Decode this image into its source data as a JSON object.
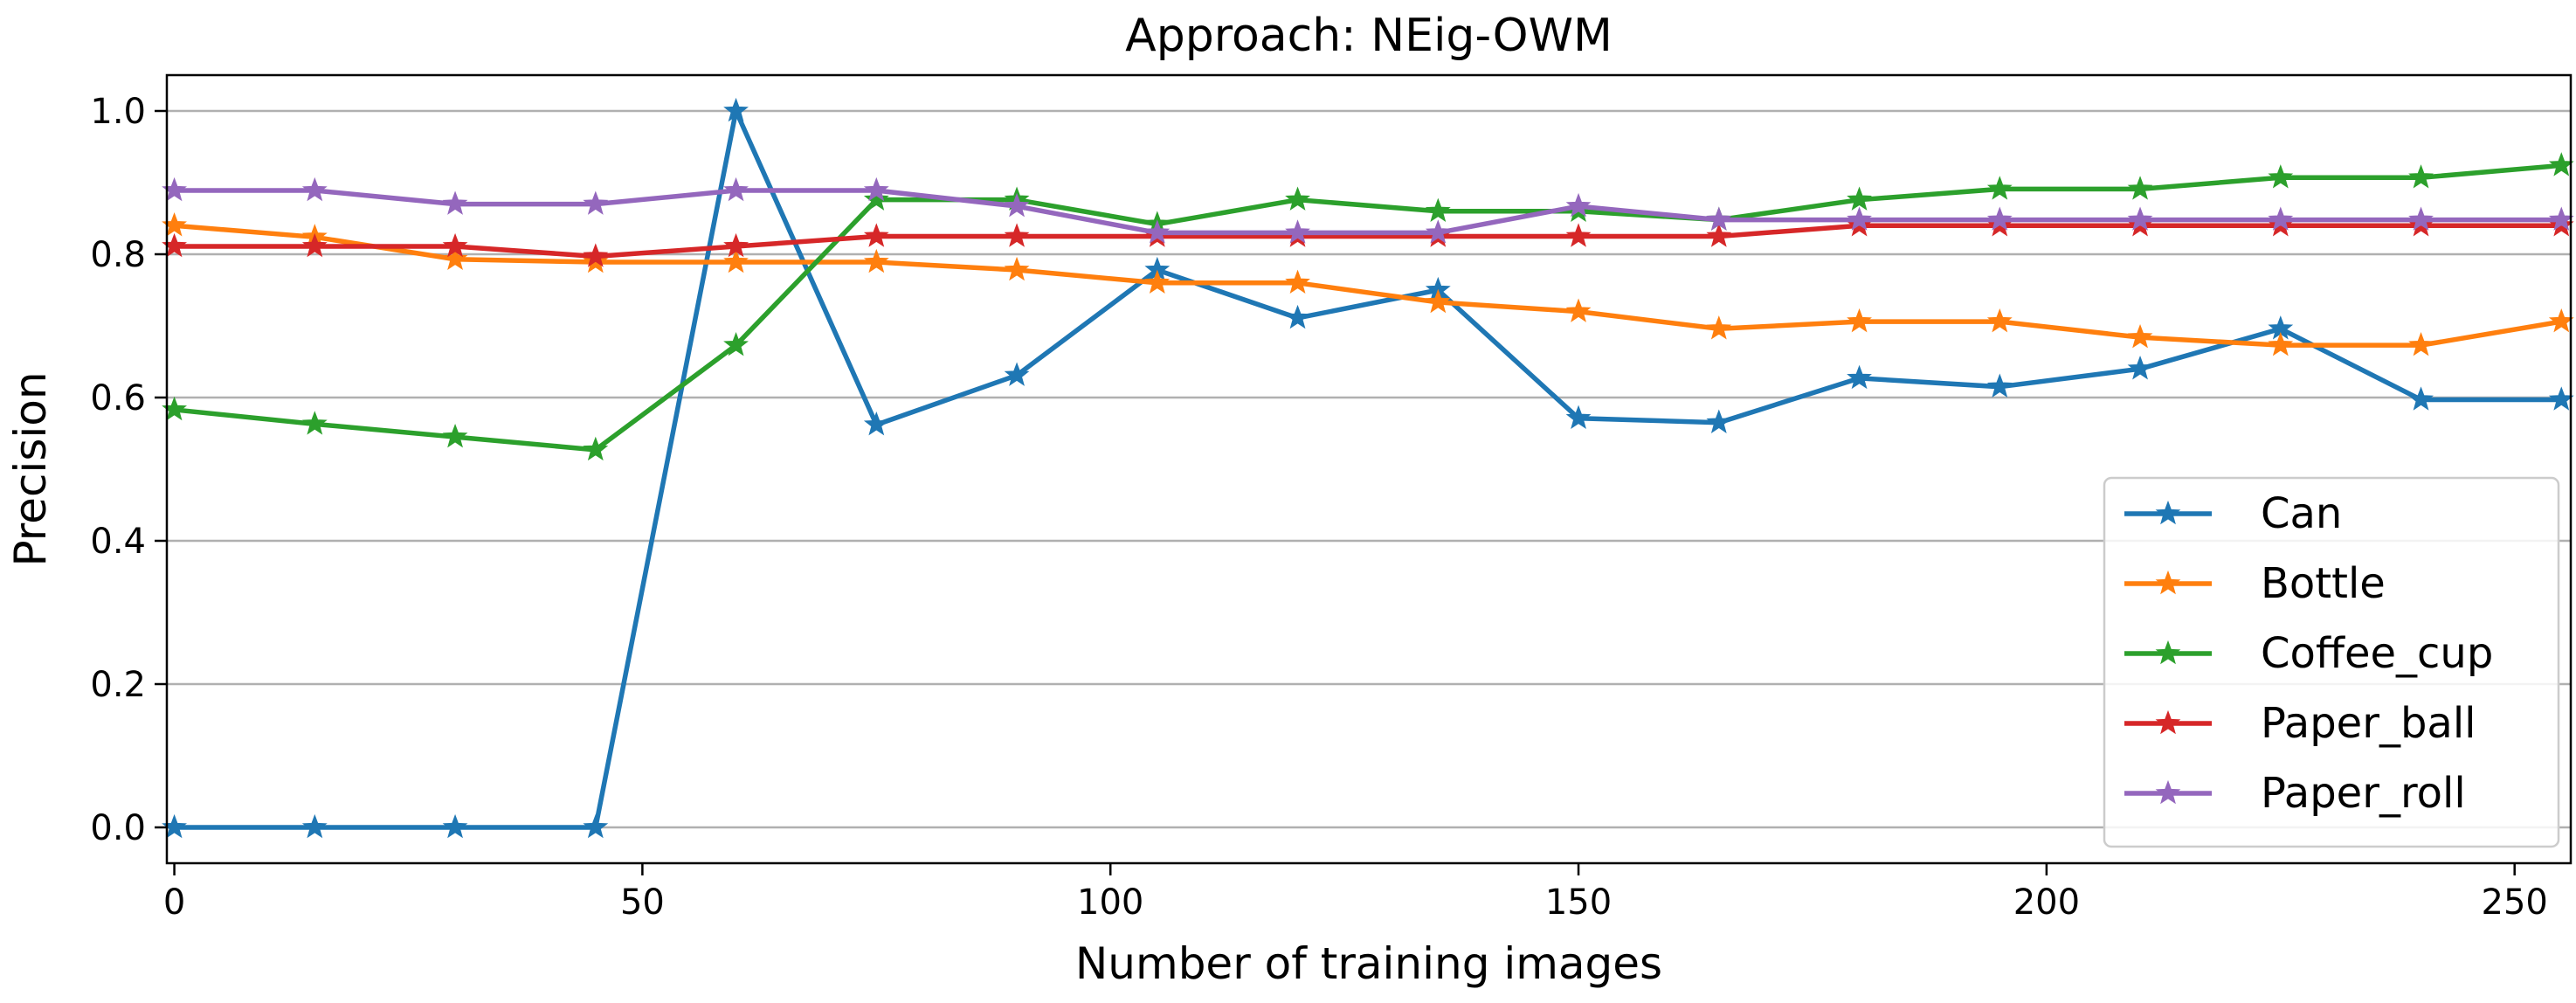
{
  "chart_data": {
    "type": "line",
    "title": "Approach: NEig-OWM",
    "xlabel": "Number of training images",
    "ylabel": "Precision",
    "xlim": [
      -0.8,
      256
    ],
    "ylim": [
      -0.05,
      1.05
    ],
    "xticks": [
      0,
      50,
      100,
      150,
      200,
      250
    ],
    "yticks": [
      0.0,
      0.2,
      0.4,
      0.6,
      0.8,
      1.0
    ],
    "ytick_labels": [
      "0.0",
      "0.2",
      "0.4",
      "0.6",
      "0.8",
      "1.0"
    ],
    "grid": "horizontal",
    "legend_position": "lower right",
    "marker": "star",
    "x": [
      0,
      15,
      30,
      45,
      60,
      75,
      90,
      105,
      120,
      135,
      150,
      165,
      180,
      195,
      210,
      225,
      240,
      255
    ],
    "series": [
      {
        "name": "Can",
        "color": "#1f77b4",
        "values": [
          0.0,
          0.0,
          0.0,
          0.0,
          1.0,
          0.562,
          0.631,
          0.778,
          0.711,
          0.75,
          0.571,
          0.565,
          0.627,
          0.615,
          0.64,
          0.696,
          0.597,
          0.597
        ]
      },
      {
        "name": "Bottle",
        "color": "#ff7f0e",
        "values": [
          0.84,
          0.824,
          0.793,
          0.789,
          0.789,
          0.789,
          0.778,
          0.76,
          0.76,
          0.733,
          0.72,
          0.696,
          0.706,
          0.706,
          0.684,
          0.673,
          0.673,
          0.706
        ]
      },
      {
        "name": "Coffee_cup",
        "color": "#2ca02c",
        "values": [
          0.583,
          0.563,
          0.545,
          0.527,
          0.673,
          0.876,
          0.876,
          0.842,
          0.876,
          0.86,
          0.86,
          0.848,
          0.876,
          0.891,
          0.891,
          0.907,
          0.907,
          0.924
        ]
      },
      {
        "name": "Paper_ball",
        "color": "#d62728",
        "values": [
          0.811,
          0.811,
          0.811,
          0.797,
          0.811,
          0.825,
          0.825,
          0.825,
          0.825,
          0.825,
          0.825,
          0.825,
          0.84,
          0.84,
          0.84,
          0.84,
          0.84,
          0.84
        ]
      },
      {
        "name": "Paper_roll",
        "color": "#9467bd",
        "values": [
          0.889,
          0.889,
          0.87,
          0.87,
          0.889,
          0.889,
          0.867,
          0.83,
          0.83,
          0.83,
          0.867,
          0.848,
          0.848,
          0.848,
          0.848,
          0.848,
          0.848,
          0.848
        ]
      }
    ]
  }
}
